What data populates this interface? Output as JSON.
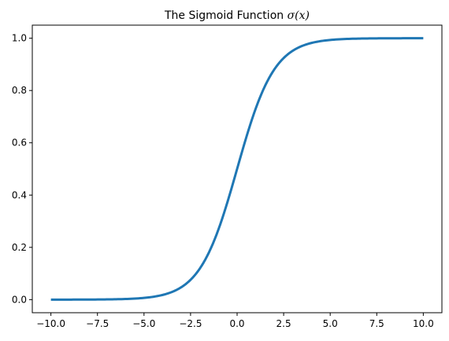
{
  "chart_data": {
    "type": "line",
    "title": "The Sigmoid Function",
    "title_math": "σ(x)",
    "xlabel": "",
    "ylabel": "",
    "xlim": [
      -11,
      11
    ],
    "ylim": [
      -0.05,
      1.05
    ],
    "grid": false,
    "legend": "none",
    "x_ticks": [
      -10.0,
      -7.5,
      -5.0,
      -2.5,
      0.0,
      2.5,
      5.0,
      7.5,
      10.0
    ],
    "x_tick_labels": [
      "−10.0",
      "−7.5",
      "−5.0",
      "−2.5",
      "0.0",
      "2.5",
      "5.0",
      "7.5",
      "10.0"
    ],
    "y_ticks": [
      0.0,
      0.2,
      0.4,
      0.6,
      0.8,
      1.0
    ],
    "y_tick_labels": [
      "0.0",
      "0.2",
      "0.4",
      "0.6",
      "0.8",
      "1.0"
    ],
    "line_color": "#1f77b4",
    "series": [
      {
        "x": [
          -10,
          -9,
          -8,
          -7,
          -6,
          -5,
          -4.5,
          -4,
          -3.5,
          -3,
          -2.5,
          -2,
          -1.5,
          -1,
          -0.5,
          0,
          0.5,
          1,
          1.5,
          2,
          2.5,
          3,
          3.5,
          4,
          4.5,
          5,
          6,
          7,
          8,
          9,
          10
        ],
        "y": [
          0.0,
          0.0001,
          0.0003,
          0.0009,
          0.0025,
          0.0067,
          0.011,
          0.018,
          0.029,
          0.047,
          0.076,
          0.119,
          0.182,
          0.269,
          0.378,
          0.5,
          0.622,
          0.731,
          0.818,
          0.881,
          0.924,
          0.953,
          0.971,
          0.982,
          0.989,
          0.993,
          0.9975,
          0.9991,
          0.9997,
          0.9999,
          1.0
        ]
      }
    ]
  }
}
